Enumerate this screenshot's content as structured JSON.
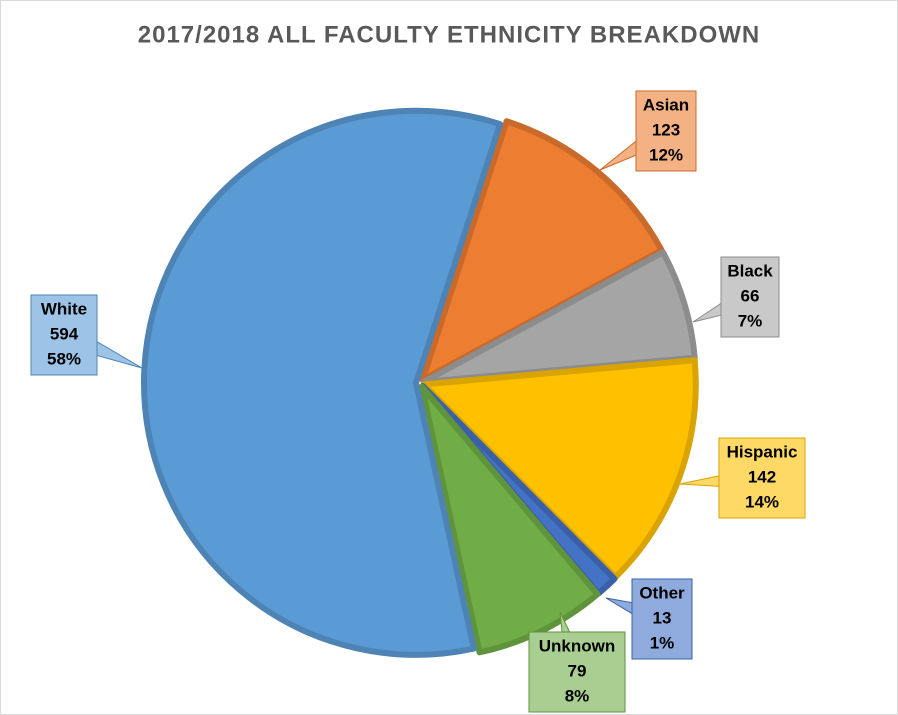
{
  "chart_data": {
    "type": "pie",
    "title": "2017/2018 ALL FACULTY ETHNICITY BREAKDOWN",
    "categories": [
      "Asian",
      "Black",
      "Hispanic",
      "Other",
      "Unknown",
      "White"
    ],
    "values": [
      123,
      66,
      142,
      13,
      79,
      594
    ],
    "percent_labels": [
      "12%",
      "7%",
      "14%",
      "1%",
      "8%",
      "58%"
    ],
    "colors": [
      "#ed7d31",
      "#a5a5a5",
      "#ffc000",
      "#4472c4",
      "#70ad47",
      "#5b9bd5"
    ]
  }
}
